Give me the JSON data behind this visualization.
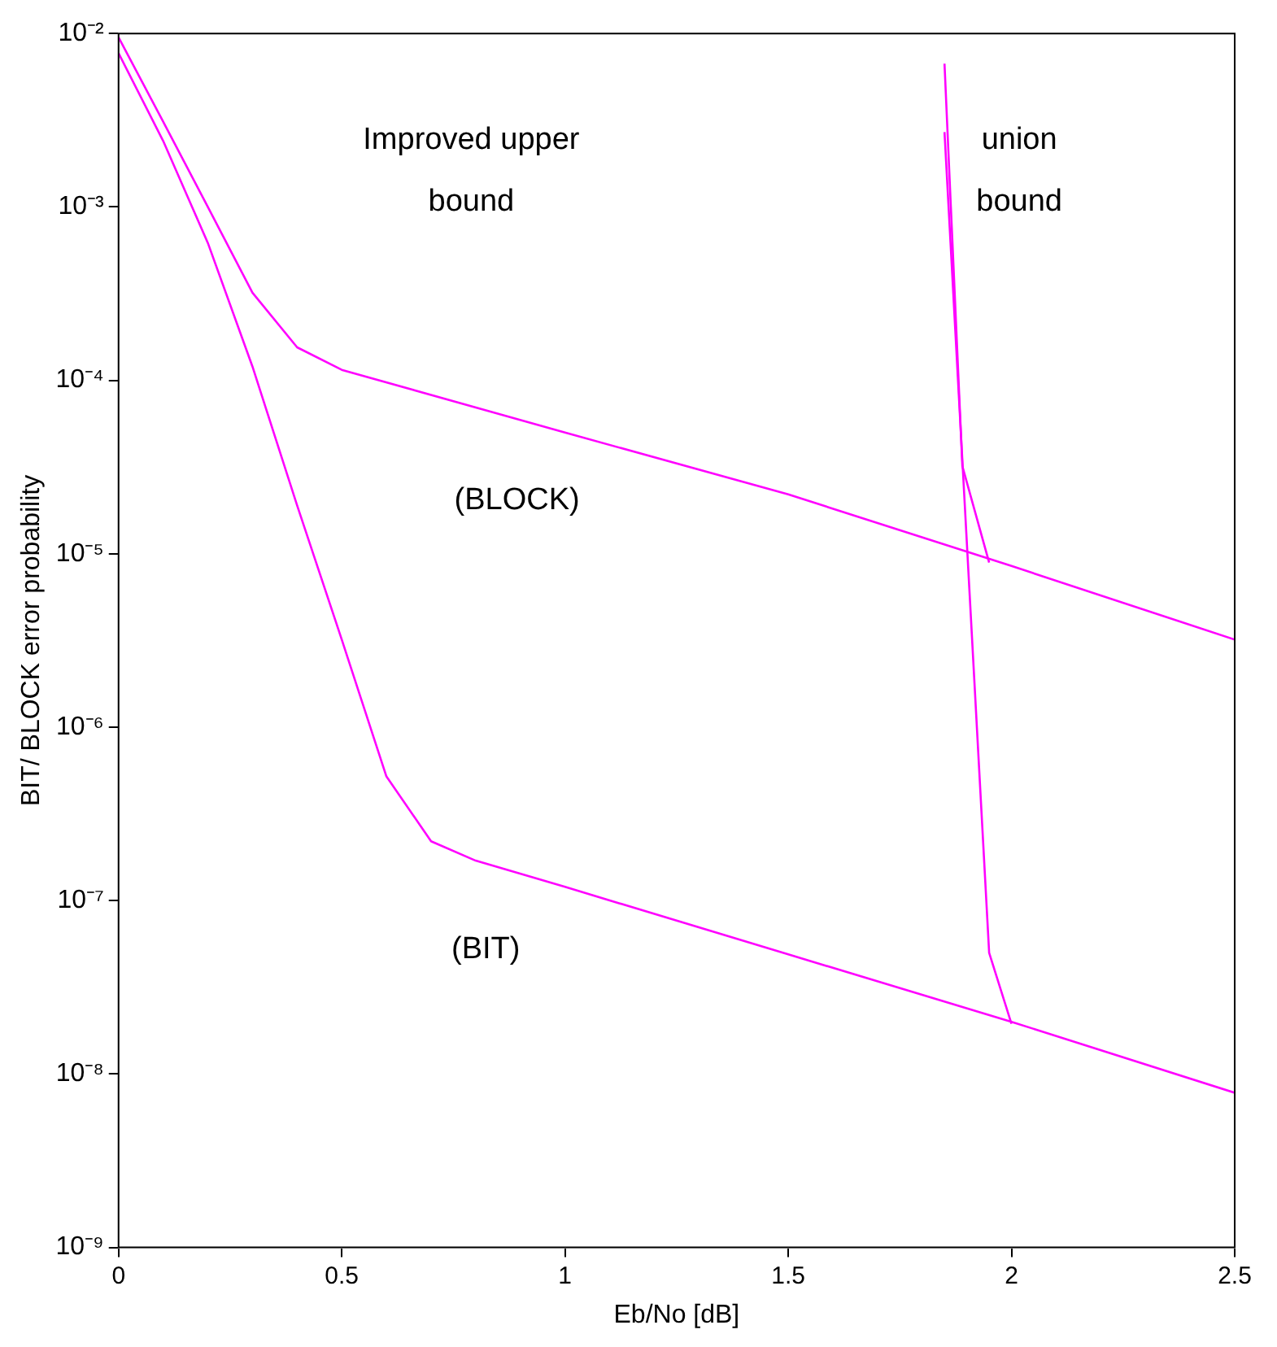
{
  "chart_data": {
    "type": "line",
    "xlabel": "Eb/No [dB]",
    "ylabel": "BIT/ BLOCK error probability",
    "log": "y",
    "grid": false,
    "legend": false,
    "marker": "none",
    "line_style": "solid",
    "xlim": [
      0,
      2.5
    ],
    "xticks": [
      0,
      0.5,
      1,
      1.5,
      2,
      2.5
    ],
    "ylim": [
      1e-09,
      0.01
    ],
    "yticks": [
      {
        "value": 1e-09,
        "label": "10⁻⁹"
      },
      {
        "value": 1e-08,
        "label": "10⁻⁸"
      },
      {
        "value": 1e-07,
        "label": "10⁻⁷"
      },
      {
        "value": 1e-06,
        "label": "10⁻⁶"
      },
      {
        "value": 1e-05,
        "label": "10⁻⁵"
      },
      {
        "value": 0.0001,
        "label": "10⁻⁴"
      },
      {
        "value": 0.001,
        "label": "10⁻³"
      },
      {
        "value": 0.01,
        "label": "10⁻²"
      }
    ],
    "series": [
      {
        "color": "#ff00ff",
        "x": [
          0,
          0.1,
          0.2,
          0.3,
          0.4,
          0.5,
          1.0,
          1.5,
          2.0,
          2.5
        ],
        "values": [
          0.0095,
          0.0031,
          0.001,
          0.00032,
          0.000155,
          0.000115,
          5e-05,
          2.2e-05,
          8.5e-06,
          3.2e-06
        ]
      },
      {
        "color": "#ff00ff",
        "x": [
          0,
          0.1,
          0.2,
          0.3,
          0.4,
          0.5,
          0.6,
          0.7,
          0.8,
          1.0,
          1.5,
          2.0,
          2.5
        ],
        "values": [
          0.0077,
          0.0024,
          0.00062,
          0.00012,
          1.9e-05,
          3.2e-06,
          5.2e-07,
          2.2e-07,
          1.7e-07,
          1.2e-07,
          4.9e-08,
          2e-08,
          7.8e-09
        ]
      },
      {
        "color": "#ff00ff",
        "x": [
          1.85,
          1.89,
          1.95
        ],
        "values": [
          0.0067,
          3.2e-05,
          8.9e-06
        ]
      },
      {
        "color": "#ff00ff",
        "x": [
          1.85,
          1.95,
          2.0
        ],
        "values": [
          0.0027,
          5e-08,
          1.95e-08
        ]
      }
    ],
    "annotations": [
      "Improved upper bound",
      "union bound",
      "(BLOCK)",
      "(BIT)"
    ]
  }
}
